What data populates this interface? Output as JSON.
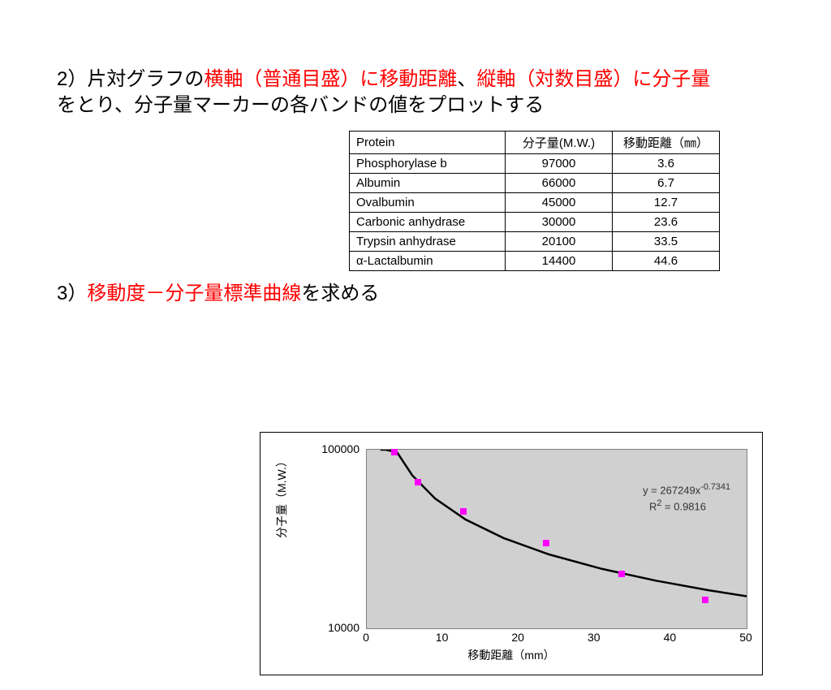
{
  "heading2": {
    "prefix": "2）片対グラフの",
    "red1": "横軸（普通目盛）に移動距離",
    "mid": "、",
    "red2": "縦軸（対数目盛）に分子量",
    "line2": "をとり、分子量マーカーの各バンドの値をプロットする"
  },
  "heading3": {
    "prefix": "3）",
    "red": "移動度－分子量標準曲線",
    "suffix": "を求める"
  },
  "table": {
    "headers": {
      "protein": "Protein",
      "mw": "分子量(M.W.)",
      "dist": "移動距離（㎜）"
    },
    "rows": [
      {
        "protein": "Phosphorylase b",
        "mw": "97000",
        "dist": "3.6"
      },
      {
        "protein": "Albumin",
        "mw": "66000",
        "dist": "6.7"
      },
      {
        "protein": "Ovalbumin",
        "mw": "45000",
        "dist": "12.7"
      },
      {
        "protein": "Carbonic anhydrase",
        "mw": "30000",
        "dist": "23.6"
      },
      {
        "protein": "Trypsin anhydrase",
        "mw": "20100",
        "dist": "33.5"
      },
      {
        "protein": "α-Lactalbumin",
        "mw": "14400",
        "dist": "44.6"
      }
    ]
  },
  "chart": {
    "type": "scatter-log",
    "xlabel": "移動距離（mm）",
    "ylabel": "分子量（M.W.）",
    "xlim": [
      0,
      50
    ],
    "ylim": [
      10000,
      100000
    ],
    "xtick_step": 10,
    "yticks": [
      10000,
      100000
    ],
    "ytick_labels": [
      "10000",
      "100000"
    ],
    "xtick_labels": [
      "0",
      "10",
      "20",
      "30",
      "40",
      "50"
    ],
    "marker_color": "#ff00ff",
    "marker_size": 8,
    "background_color": "#d0d0d0",
    "curve_color": "#000000",
    "curve_width": 2.5,
    "equation": "y = 267249x",
    "equation_exp": "-0.7341",
    "r2_label": "R",
    "r2_sup": "2",
    "r2_rest": " = 0.9816",
    "points": [
      {
        "x": 3.6,
        "y": 97000
      },
      {
        "x": 6.7,
        "y": 66000
      },
      {
        "x": 12.7,
        "y": 45000
      },
      {
        "x": 23.6,
        "y": 30000
      },
      {
        "x": 33.5,
        "y": 20100
      },
      {
        "x": 44.6,
        "y": 14400
      }
    ],
    "curve_samples": [
      1.8,
      2.5,
      4,
      6,
      9,
      13,
      18,
      24,
      31,
      38,
      45,
      50
    ]
  }
}
